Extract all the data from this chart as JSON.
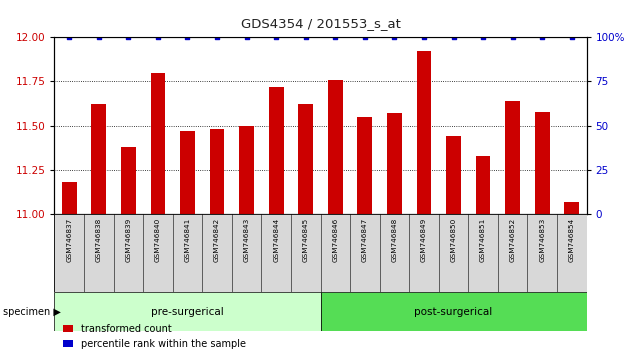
{
  "title": "GDS4354 / 201553_s_at",
  "samples": [
    "GSM746837",
    "GSM746838",
    "GSM746839",
    "GSM746840",
    "GSM746841",
    "GSM746842",
    "GSM746843",
    "GSM746844",
    "GSM746845",
    "GSM746846",
    "GSM746847",
    "GSM746848",
    "GSM746849",
    "GSM746850",
    "GSM746851",
    "GSM746852",
    "GSM746853",
    "GSM746854"
  ],
  "red_values": [
    11.18,
    11.62,
    11.38,
    11.8,
    11.47,
    11.48,
    11.5,
    11.72,
    11.62,
    11.76,
    11.55,
    11.57,
    11.92,
    11.44,
    11.33,
    11.64,
    11.58,
    11.07
  ],
  "blue_values": [
    100,
    100,
    100,
    100,
    100,
    100,
    100,
    100,
    100,
    100,
    100,
    100,
    100,
    100,
    100,
    100,
    100,
    100
  ],
  "ylim_left": [
    11.0,
    12.0
  ],
  "ylim_right": [
    0,
    100
  ],
  "yticks_left": [
    11.0,
    11.25,
    11.5,
    11.75,
    12.0
  ],
  "yticks_right": [
    0,
    25,
    50,
    75,
    100
  ],
  "bar_color_red": "#cc0000",
  "bar_color_blue": "#0000cc",
  "bar_width": 0.5,
  "pre_surgical_count": 9,
  "legend_red": "transformed count",
  "legend_blue": "percentile rank within the sample",
  "left_axis_color": "#cc0000",
  "right_axis_color": "#0000cc",
  "pre_color": "#ccffcc",
  "post_color": "#55dd55",
  "tick_bg_color": "#d8d8d8"
}
